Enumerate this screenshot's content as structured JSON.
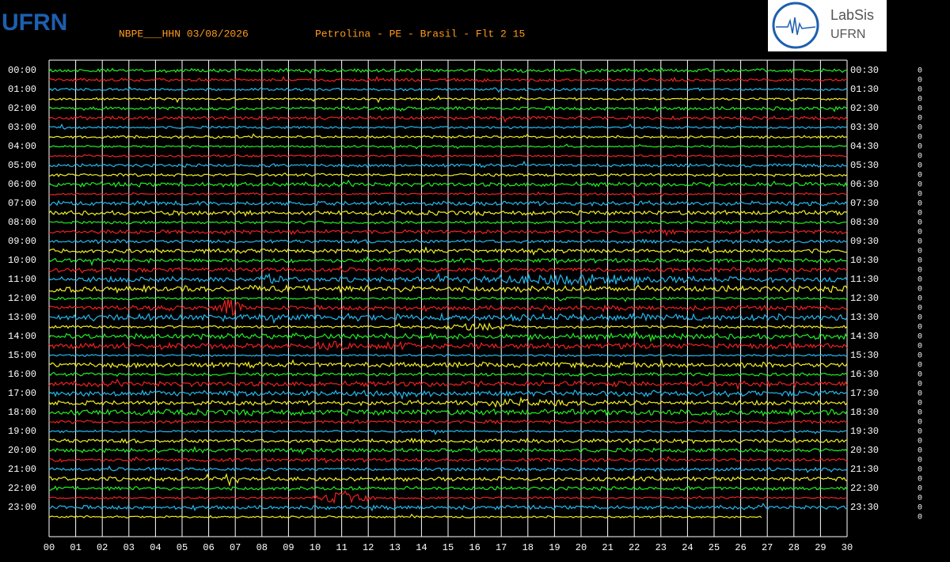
{
  "header": {
    "station": "NBPE___HHN 03/08/2026",
    "location": "Petrolina - PE - Brasil - Flt 2 15",
    "logo_left": "UFRN",
    "logo_right_title": "LabSis",
    "logo_right_sub": "UFRN"
  },
  "left_labels": [
    "00:00",
    "01:00",
    "02:00",
    "03:00",
    "04:00",
    "05:00",
    "06:00",
    "07:00",
    "08:00",
    "09:00",
    "10:00",
    "11:00",
    "12:00",
    "13:00",
    "14:00",
    "15:00",
    "16:00",
    "17:00",
    "18:00",
    "19:00",
    "20:00",
    "21:00",
    "22:00",
    "23:00"
  ],
  "right_labels": [
    "00:30",
    "01:30",
    "02:30",
    "03:30",
    "04:30",
    "05:30",
    "06:30",
    "07:30",
    "08:30",
    "09:30",
    "10:30",
    "11:30",
    "12:30",
    "13:30",
    "14:30",
    "15:30",
    "16:30",
    "17:30",
    "18:30",
    "19:30",
    "20:30",
    "21:30",
    "22:30",
    "23:30"
  ],
  "x_labels": [
    "00",
    "01",
    "02",
    "03",
    "04",
    "05",
    "06",
    "07",
    "08",
    "09",
    "10",
    "11",
    "12",
    "13",
    "14",
    "15",
    "16",
    "17",
    "18",
    "19",
    "20",
    "21",
    "22",
    "23",
    "24",
    "25",
    "26",
    "27",
    "28",
    "29",
    "30"
  ],
  "right_counts": [
    0,
    0,
    0,
    0,
    0,
    0,
    0,
    0,
    0,
    0,
    0,
    0,
    0,
    0,
    0,
    0,
    0,
    0,
    0,
    0,
    0,
    0,
    0,
    0,
    0,
    0,
    0,
    0,
    0,
    0,
    0,
    0,
    0,
    0,
    0,
    0,
    0,
    0,
    0,
    0,
    0,
    0,
    0,
    0,
    0,
    0,
    0,
    0
  ],
  "trace_colors": [
    "#22ee22",
    "#ee2020",
    "#22b8ee",
    "#eeee22"
  ]
}
